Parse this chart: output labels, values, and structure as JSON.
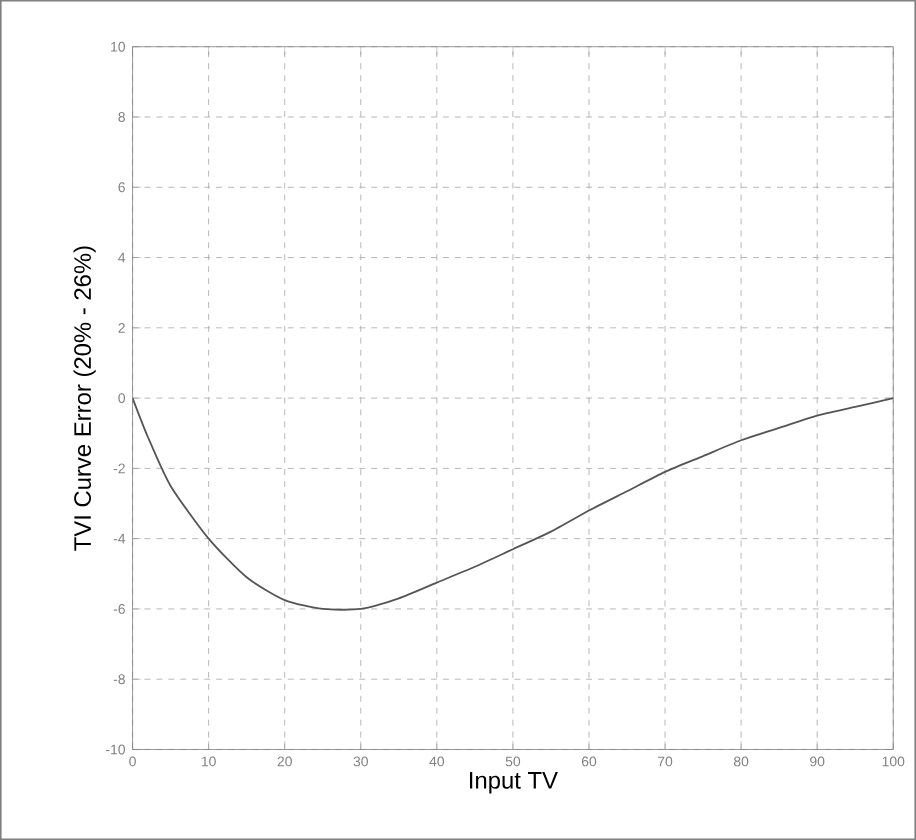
{
  "chart_data": {
    "type": "line",
    "xlabel": "Input TV",
    "ylabel": "TVI Curve Error (20% - 26%)",
    "x": [
      0,
      2,
      5,
      10,
      15,
      20,
      25,
      30,
      35,
      40,
      45,
      50,
      55,
      60,
      65,
      70,
      75,
      80,
      85,
      90,
      95,
      100
    ],
    "series": [
      {
        "color": "#555555",
        "values": [
          0,
          -1.1,
          -2.5,
          -4,
          -5.1,
          -5.75,
          -6,
          -6,
          -5.7,
          -5.25,
          -4.8,
          -4.3,
          -3.8,
          -3.2,
          -2.65,
          -2.1,
          -1.65,
          -1.2,
          -0.85,
          -0.5,
          -0.25,
          0
        ]
      }
    ],
    "xlim": [
      0,
      100
    ],
    "ylim": [
      -10,
      10
    ],
    "xticks": [
      0,
      10,
      20,
      30,
      40,
      50,
      60,
      70,
      80,
      90,
      100
    ],
    "yticks": [
      -10,
      -8,
      -6,
      -4,
      -2,
      0,
      2,
      4,
      6,
      8,
      10
    ],
    "grid": true,
    "marker": "none",
    "line_style": "solid"
  }
}
